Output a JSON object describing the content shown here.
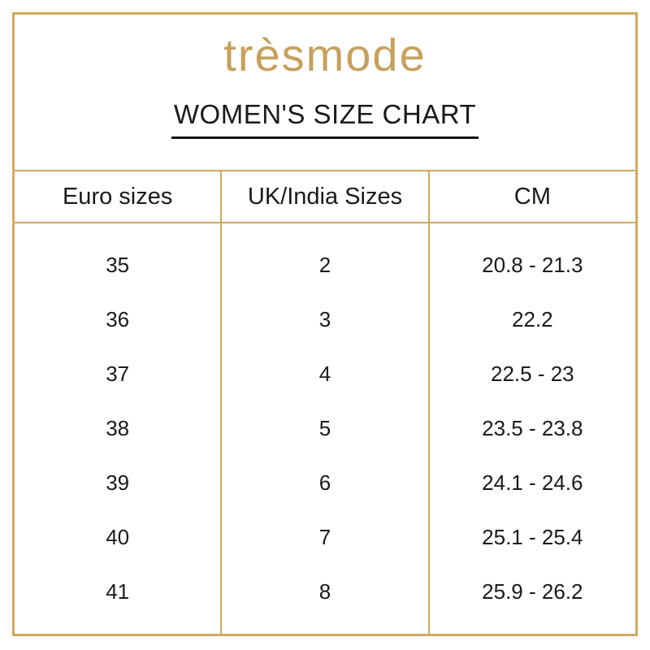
{
  "brand": {
    "logo": "trèsmode"
  },
  "title": "WOMEN'S SIZE CHART",
  "colors": {
    "border_gold": "#d1a95f",
    "logo_gold": "#c6a15c",
    "text": "#1a1a1a",
    "background": "#ffffff"
  },
  "table": {
    "columns": [
      "Euro sizes",
      "UK/India Sizes",
      "CM"
    ],
    "rows": [
      [
        "35",
        "2",
        "20.8 - 21.3"
      ],
      [
        "36",
        "3",
        "22.2"
      ],
      [
        "37",
        "4",
        "22.5 - 23"
      ],
      [
        "38",
        "5",
        "23.5 - 23.8"
      ],
      [
        "39",
        "6",
        "24.1 - 24.6"
      ],
      [
        "40",
        "7",
        "25.1 - 25.4"
      ],
      [
        "41",
        "8",
        "25.9 - 26.2"
      ]
    ]
  }
}
